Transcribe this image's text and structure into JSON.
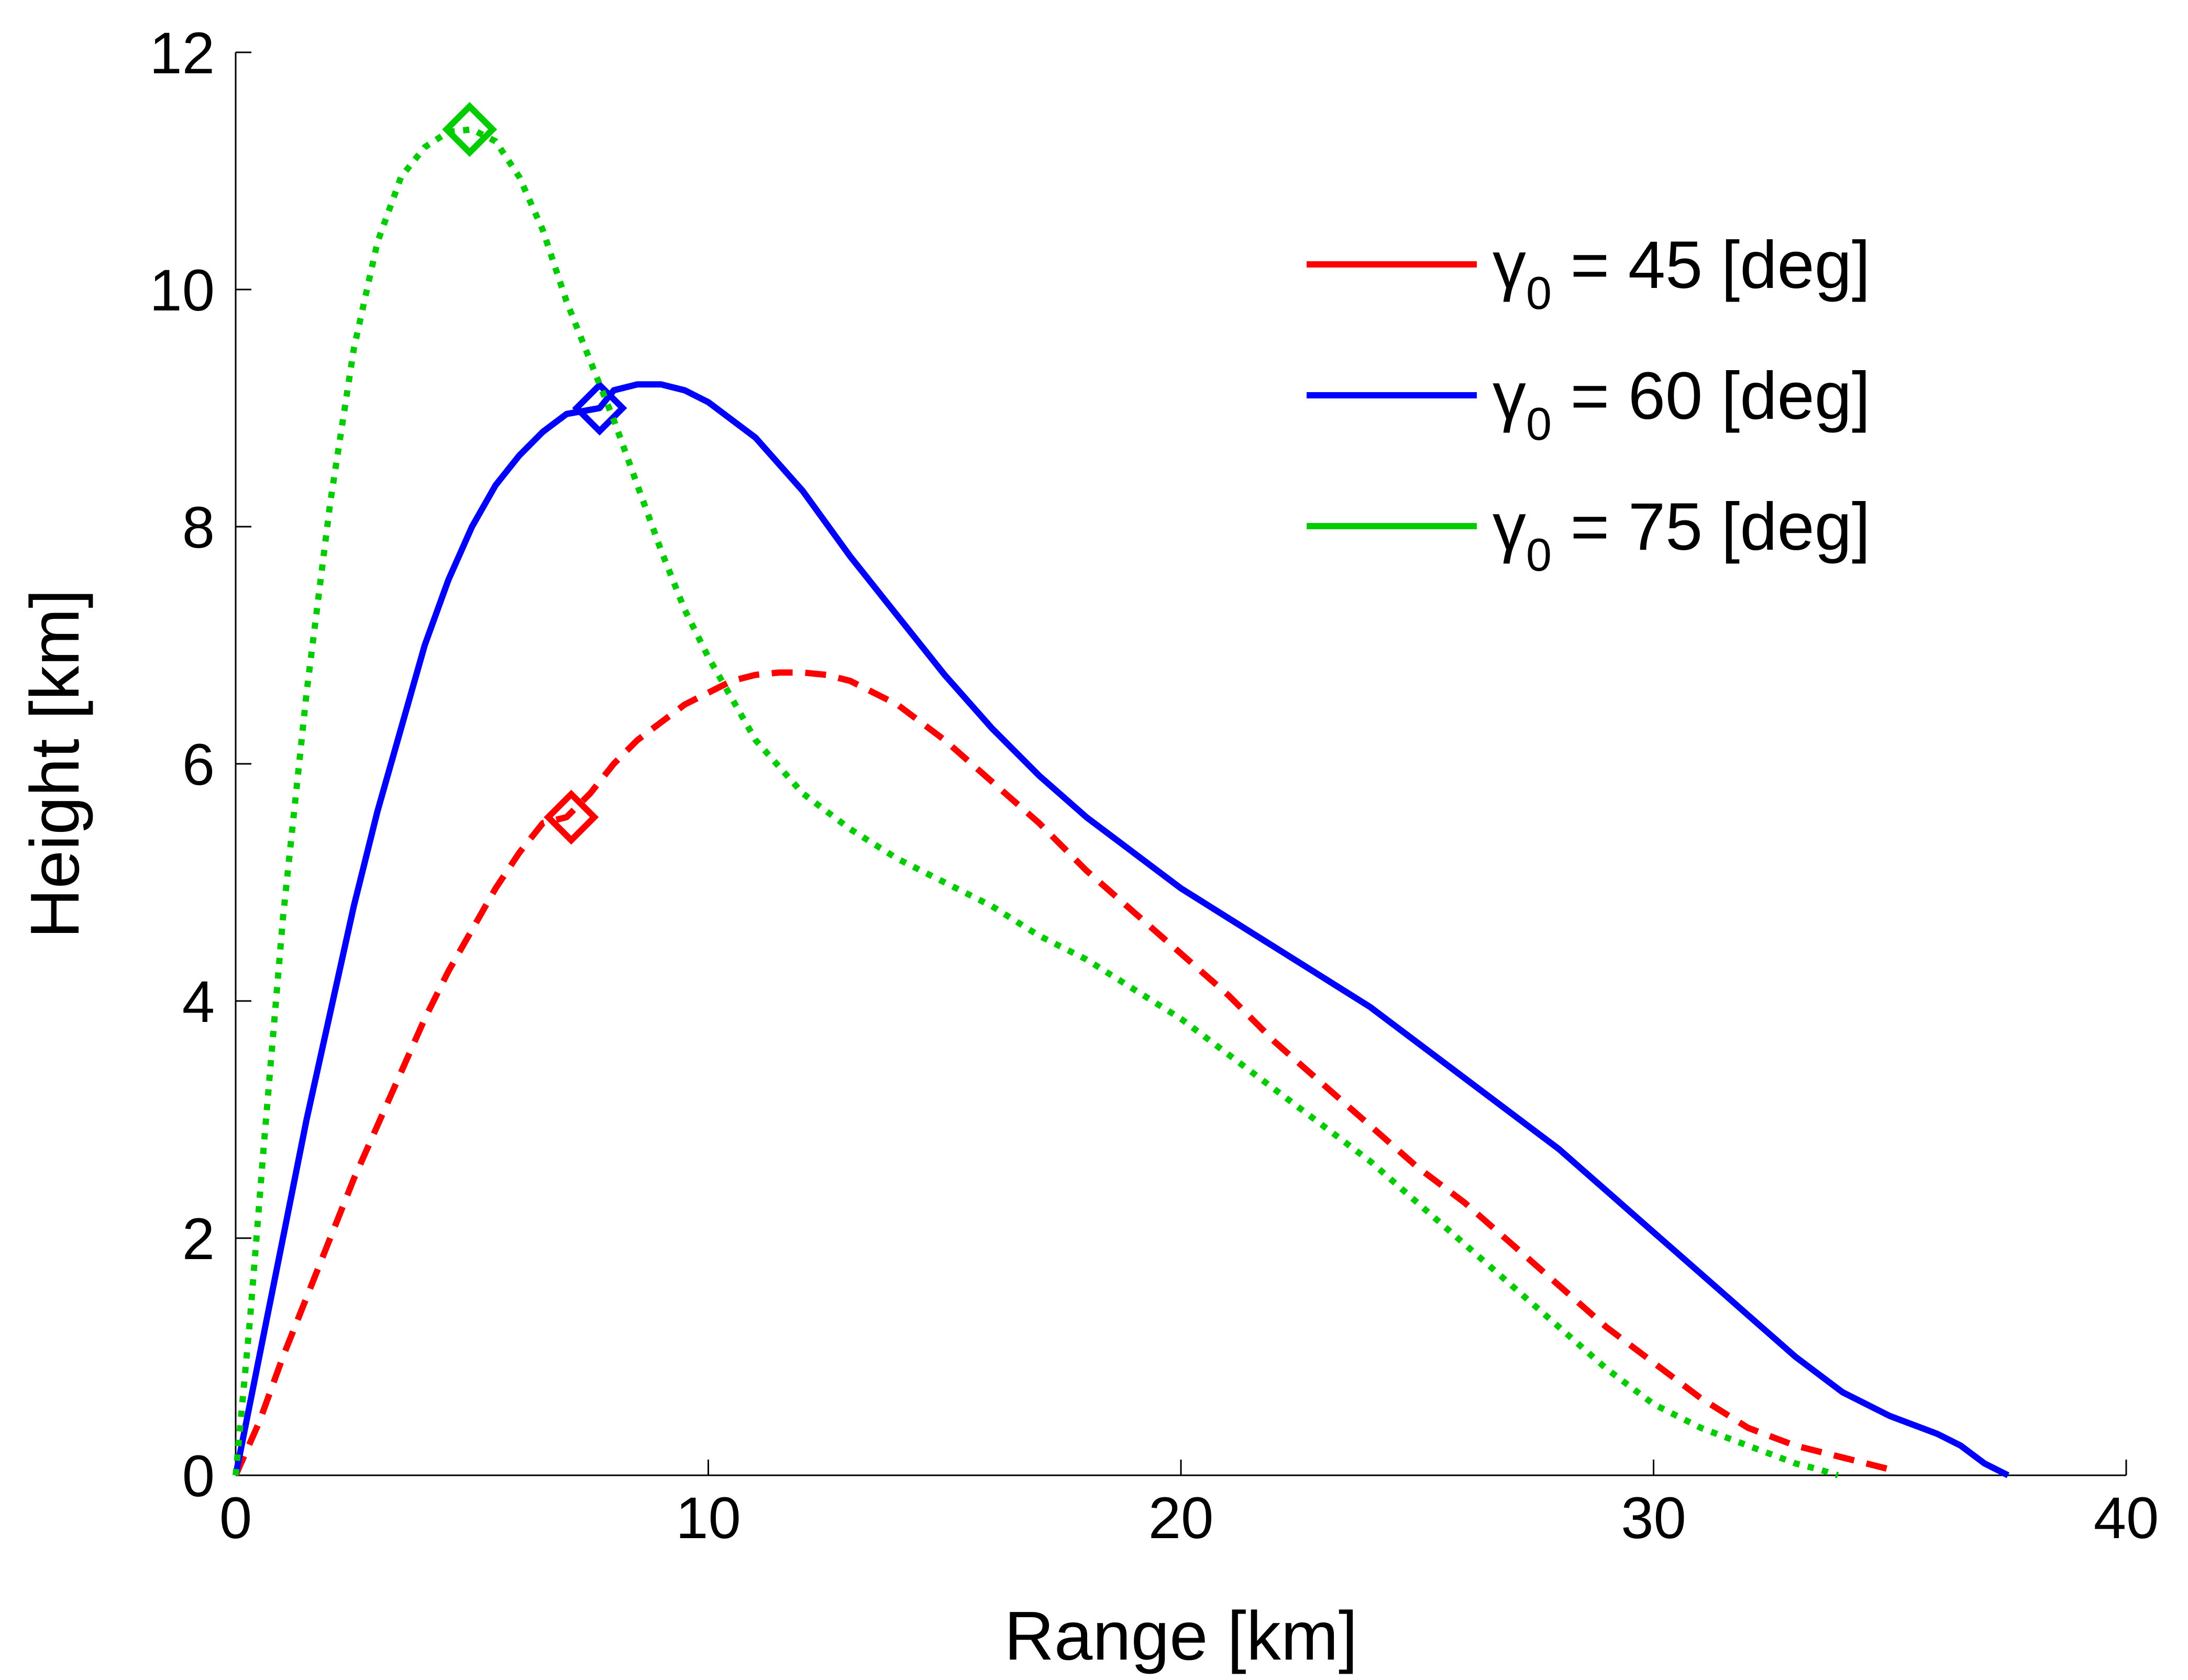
{
  "chart_data": {
    "type": "line",
    "title": "",
    "xlabel": "Range [km]",
    "ylabel": "Height [km]",
    "xlim": [
      0,
      40
    ],
    "ylim": [
      0,
      12
    ],
    "xticks": [
      0,
      10,
      20,
      30,
      40
    ],
    "yticks": [
      0,
      2,
      4,
      6,
      8,
      10,
      12
    ],
    "grid": false,
    "legend_position": "top-right",
    "series": [
      {
        "name": "γ0 = 45 [deg]",
        "legend": {
          "symbol": "γ",
          "sub": "0",
          "rest": " = 45 [deg]"
        },
        "color": "#ff0000",
        "style": "dashed",
        "marker_point": {
          "x": 7.1,
          "y": 5.55
        },
        "x": [
          0,
          0.5,
          1,
          1.5,
          2,
          2.5,
          3,
          3.5,
          4,
          4.5,
          5,
          5.5,
          6,
          6.5,
          7,
          7.5,
          8,
          8.5,
          9,
          9.5,
          10,
          10.5,
          11,
          11.5,
          12,
          12.5,
          13,
          14,
          15,
          16,
          17,
          18,
          19,
          20,
          21,
          22,
          23,
          24,
          25,
          26,
          27,
          28,
          29,
          30,
          31,
          32,
          33,
          34,
          34.5,
          35,
          35.1
        ],
        "y": [
          0,
          0.45,
          1.0,
          1.5,
          2.0,
          2.5,
          2.95,
          3.4,
          3.85,
          4.25,
          4.6,
          4.95,
          5.25,
          5.5,
          5.55,
          5.75,
          6.0,
          6.2,
          6.35,
          6.5,
          6.6,
          6.7,
          6.75,
          6.77,
          6.77,
          6.75,
          6.7,
          6.5,
          6.2,
          5.85,
          5.5,
          5.1,
          4.75,
          4.4,
          4.05,
          3.65,
          3.3,
          2.95,
          2.6,
          2.3,
          1.95,
          1.6,
          1.25,
          0.95,
          0.65,
          0.4,
          0.25,
          0.15,
          0.1,
          0.05,
          0
        ]
      },
      {
        "name": "γ0 = 60 [deg]",
        "legend": {
          "symbol": "γ",
          "sub": "0",
          "rest": " = 60 [deg]"
        },
        "color": "#0000ff",
        "style": "solid",
        "marker_point": {
          "x": 7.7,
          "y": 9.0
        },
        "x": [
          0,
          0.3,
          0.6,
          1,
          1.5,
          2,
          2.5,
          3,
          3.5,
          4,
          4.5,
          5,
          5.5,
          6,
          6.5,
          7,
          7.7,
          8,
          8.5,
          9,
          9.5,
          10,
          11,
          12,
          13,
          14,
          15,
          16,
          17,
          18,
          19,
          20,
          21,
          22,
          23,
          24,
          25,
          26,
          27,
          28,
          29,
          30,
          31,
          32,
          33,
          34,
          35,
          36,
          36.5,
          37,
          37.5
        ],
        "y": [
          0,
          0.6,
          1.2,
          2.0,
          3.0,
          3.9,
          4.8,
          5.6,
          6.3,
          7.0,
          7.55,
          8.0,
          8.35,
          8.6,
          8.8,
          8.95,
          9.0,
          9.15,
          9.2,
          9.2,
          9.15,
          9.05,
          8.75,
          8.3,
          7.75,
          7.25,
          6.75,
          6.3,
          5.9,
          5.55,
          5.25,
          4.95,
          4.7,
          4.45,
          4.2,
          3.95,
          3.65,
          3.35,
          3.05,
          2.75,
          2.4,
          2.05,
          1.7,
          1.35,
          1.0,
          0.7,
          0.5,
          0.35,
          0.25,
          0.1,
          0
        ]
      },
      {
        "name": "γ0 = 75 [deg]",
        "legend": {
          "symbol": "γ",
          "sub": "0",
          "rest": " = 75 [deg]"
        },
        "color": "#00cc00",
        "style": "dotted",
        "marker_point": {
          "x": 4.95,
          "y": 11.35
        },
        "x": [
          0,
          0.3,
          0.6,
          1,
          1.5,
          2,
          2.5,
          3,
          3.5,
          4,
          4.5,
          5,
          5.5,
          6,
          6.5,
          7,
          7.5,
          8,
          8.5,
          9,
          9.5,
          10,
          11,
          12,
          13,
          14,
          15,
          16,
          17,
          18,
          19,
          20,
          21,
          22,
          23,
          24,
          25,
          26,
          27,
          28,
          29,
          30,
          31,
          32,
          33,
          33.5,
          33.9
        ],
        "y": [
          0,
          1.3,
          2.8,
          4.7,
          6.6,
          8.2,
          9.5,
          10.4,
          10.95,
          11.2,
          11.33,
          11.35,
          11.25,
          10.95,
          10.5,
          9.9,
          9.4,
          8.9,
          8.35,
          7.8,
          7.3,
          6.9,
          6.2,
          5.75,
          5.45,
          5.2,
          5.0,
          4.8,
          4.55,
          4.35,
          4.1,
          3.85,
          3.55,
          3.25,
          2.95,
          2.65,
          2.3,
          1.95,
          1.6,
          1.25,
          0.9,
          0.6,
          0.4,
          0.25,
          0.1,
          0.05,
          0
        ]
      }
    ]
  }
}
